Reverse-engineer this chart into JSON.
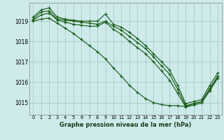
{
  "bg_color": "#ceeaea",
  "grid_color": "#aacccc",
  "line_color": "#1a5c1a",
  "title": "Graphe pression niveau de la mer (hPa)",
  "xlim": [
    -0.5,
    23.5
  ],
  "ylim": [
    1014.4,
    1019.9
  ],
  "yticks": [
    1015,
    1016,
    1017,
    1018,
    1019
  ],
  "xticks": [
    0,
    1,
    2,
    3,
    4,
    5,
    6,
    7,
    8,
    9,
    10,
    11,
    12,
    13,
    14,
    15,
    16,
    17,
    18,
    19,
    20,
    21,
    22,
    23
  ],
  "series": [
    [
      1019.2,
      1019.55,
      1019.65,
      1019.2,
      1019.1,
      1019.05,
      1019.0,
      1019.0,
      1019.0,
      1019.35,
      1018.85,
      1018.7,
      1018.45,
      1018.15,
      1017.8,
      1017.4,
      1017.0,
      1016.6,
      1015.85,
      1014.95,
      1015.05,
      1015.15,
      1015.85,
      1016.45
    ],
    [
      1019.1,
      1019.45,
      1019.5,
      1019.1,
      1019.05,
      1019.0,
      1018.95,
      1018.9,
      1018.85,
      1019.0,
      1018.75,
      1018.55,
      1018.25,
      1017.95,
      1017.65,
      1017.25,
      1016.8,
      1016.4,
      1015.65,
      1014.85,
      1014.95,
      1015.05,
      1015.7,
      1016.3
    ],
    [
      1019.05,
      1019.3,
      1019.4,
      1019.05,
      1018.95,
      1018.85,
      1018.8,
      1018.75,
      1018.75,
      1018.95,
      1018.6,
      1018.35,
      1018.0,
      1017.7,
      1017.4,
      1017.0,
      1016.55,
      1016.1,
      1015.45,
      1014.78,
      1014.88,
      1014.98,
      1015.58,
      1016.2
    ],
    [
      1019.0,
      1019.1,
      1019.15,
      1018.9,
      1018.65,
      1018.4,
      1018.1,
      1017.8,
      1017.5,
      1017.15,
      1016.7,
      1016.3,
      1015.85,
      1015.5,
      1015.2,
      1015.0,
      1014.9,
      1014.85,
      1014.85,
      1014.8,
      1014.95,
      1015.05,
      1015.65,
      1016.28
    ]
  ]
}
